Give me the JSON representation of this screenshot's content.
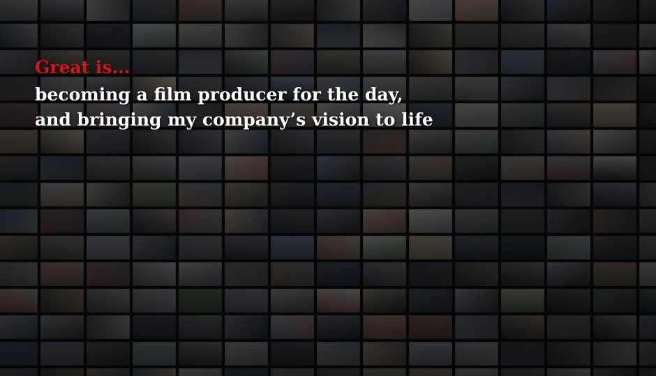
{
  "caption": {
    "headline": "Great is...",
    "lines": [
      "becoming a film producer for the day,",
      "and bringing my company’s vision to life"
    ]
  },
  "colors": {
    "headline": "#d8141c",
    "body_text": "#ffffff",
    "background": "#0a0a0a"
  },
  "mosaic": {
    "columns": 15,
    "rows": 15,
    "palette": [
      "#3a3a3a",
      "#4b4a45",
      "#5a5550",
      "#2f3340",
      "#6b6f7a",
      "#7a6a5a",
      "#2c2c2c",
      "#59606e",
      "#8a8a86",
      "#3f4a5c",
      "#6a4a4a",
      "#4a5a4a",
      "#5c5a66",
      "#777066",
      "#253040"
    ]
  }
}
